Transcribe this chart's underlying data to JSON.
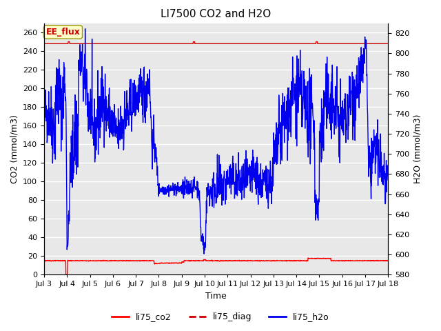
{
  "title": "LI7500 CO2 and H2O",
  "xlabel": "Time",
  "ylabel_left": "CO2 (mmol/m3)",
  "ylabel_right": "H2O (mmol/m3)",
  "annotation": "EE_flux",
  "ylim_left": [
    0,
    270
  ],
  "ylim_right": [
    580,
    830
  ],
  "yticks_left": [
    0,
    20,
    40,
    60,
    80,
    100,
    120,
    140,
    160,
    180,
    200,
    220,
    240,
    260
  ],
  "yticks_right": [
    580,
    600,
    620,
    640,
    660,
    680,
    700,
    720,
    740,
    760,
    780,
    800,
    820
  ],
  "x_start": 3.0,
  "x_end": 18.0,
  "xtick_positions": [
    3,
    4,
    5,
    6,
    7,
    8,
    9,
    10,
    11,
    12,
    13,
    14,
    15,
    16,
    17,
    18
  ],
  "xtick_labels": [
    "Jul 3",
    "Jul 4",
    "Jul 5",
    "Jul 6",
    "Jul 7",
    "Jul 8",
    "Jul 9",
    "Jul 10",
    "Jul 11",
    "Jul 12",
    "Jul 13",
    "Jul 14",
    "Jul 15",
    "Jul 16",
    "Jul 17",
    "Jul 18"
  ],
  "bg_color": "#e8e8e8",
  "grid_color": "#ffffff",
  "line_co2_color": "#ff0000",
  "line_diag_color": "#cc0000",
  "line_h2o_color": "#0000ee",
  "legend_labels": [
    "li75_co2",
    "li75_diag",
    "li75_h2o"
  ],
  "legend_colors": [
    "#ff0000",
    "#cc0000",
    "#0000ee"
  ],
  "annotation_bg": "#ffffcc",
  "annotation_border": "#999900",
  "annotation_text_color": "#cc0000",
  "title_fontsize": 11,
  "axis_label_fontsize": 9,
  "tick_fontsize": 8,
  "legend_fontsize": 9
}
